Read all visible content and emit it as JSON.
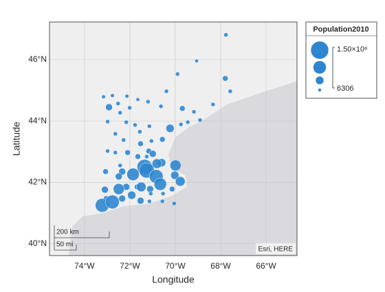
{
  "chart_data": {
    "type": "geobubble",
    "xlabel": "Longitude",
    "ylabel": "Latitude",
    "xlim": [
      -75.54,
      -64.64
    ],
    "ylim": [
      39.61,
      47.23
    ],
    "xticks": [
      {
        "value": -74,
        "label": "74°W"
      },
      {
        "value": -72,
        "label": "72°W"
      },
      {
        "value": -70,
        "label": "70°W"
      },
      {
        "value": -68,
        "label": "68°W"
      },
      {
        "value": -66,
        "label": "66°W"
      }
    ],
    "yticks": [
      {
        "value": 40,
        "label": "40°N"
      },
      {
        "value": 42,
        "label": "42°N"
      },
      {
        "value": 44,
        "label": "44°N"
      },
      {
        "value": 46,
        "label": "46°N"
      }
    ],
    "grid": true,
    "color": "#2f86cf",
    "size_legend": {
      "title": "Population2010",
      "ticks": [
        {
          "value": 1500000,
          "label": "1.50×10⁶"
        },
        6306
      ]
    },
    "scale_bar": {
      "km_label": "200 km",
      "mi_label": "50 mi"
    },
    "attribution": "Esri, HERE",
    "lon": [
      -67.77,
      -69.9,
      -69.06,
      -67.8,
      -70.39,
      -67.58,
      -69.69,
      -69.18,
      -68.34,
      -70.63,
      -68.91,
      -69.75,
      -69.45,
      -70.23,
      -73.16,
      -72.77,
      -72.52,
      -72.13,
      -71.65,
      -71.2,
      -72.92,
      -72.01,
      -72.43,
      -72.98,
      -72.16,
      -71.14,
      -71.77,
      -72.64,
      -72.28,
      -71.56,
      -72.98,
      -72.64,
      -72.1,
      -71.53,
      -71.05,
      -70.57,
      -71.17,
      -70.99,
      -72.43,
      -73.07,
      -71.65,
      -70.6,
      -71.26,
      -72.34,
      -71.35,
      -71.26,
      -70.81,
      -71.86,
      -70.84,
      -69.99,
      -70.66,
      -70.02,
      -69.78,
      -70.14,
      -72.49,
      -73.1,
      -72.16,
      -71.68,
      -72.49,
      -71.5,
      -71.11,
      -71.08,
      -70.54,
      -73.04,
      -71.92,
      -72.34,
      -71.53,
      -71.14,
      -70.57,
      -70.05,
      -73.22,
      -72.77
    ],
    "lat": [
      46.81,
      45.53,
      45.96,
      45.39,
      44.97,
      44.97,
      44.41,
      44.3,
      44.54,
      44.48,
      44.03,
      43.89,
      43.96,
      43.76,
      44.79,
      44.83,
      44.57,
      44.81,
      44.7,
      44.63,
      44.45,
      44.43,
      44.27,
      43.98,
      43.96,
      43.83,
      43.87,
      43.58,
      43.38,
      43.65,
      43.02,
      42.97,
      42.97,
      43.26,
      43.35,
      43.4,
      43.02,
      42.93,
      42.55,
      42.35,
      42.84,
      42.64,
      42.84,
      42.35,
      42.5,
      42.39,
      42.61,
      42.26,
      42.19,
      42.55,
      41.94,
      42.23,
      42.03,
      41.78,
      42.19,
      41.76,
      41.85,
      41.85,
      41.78,
      41.85,
      41.78,
      41.63,
      41.63,
      41.47,
      41.58,
      41.47,
      41.4,
      41.38,
      41.38,
      41.31,
      41.25,
      41.36
    ],
    "sizes": [
      80000,
      80000,
      30000,
      220000,
      80000,
      80000,
      220000,
      80000,
      80000,
      80000,
      80000,
      80000,
      80000,
      500000,
      50000,
      50000,
      80000,
      50000,
      30000,
      80000,
      360000,
      80000,
      80000,
      80000,
      80000,
      80000,
      80000,
      80000,
      80000,
      80000,
      80000,
      80000,
      220000,
      220000,
      80000,
      220000,
      220000,
      360000,
      80000,
      220000,
      220000,
      500000,
      80000,
      360000,
      1215000,
      1215000,
      650000,
      930000,
      1070000,
      790000,
      930000,
      500000,
      650000,
      220000,
      360000,
      360000,
      360000,
      220000,
      790000,
      650000,
      360000,
      80000,
      80000,
      220000,
      500000,
      360000,
      360000,
      80000,
      80000,
      80000,
      1070000,
      1070000
    ]
  }
}
